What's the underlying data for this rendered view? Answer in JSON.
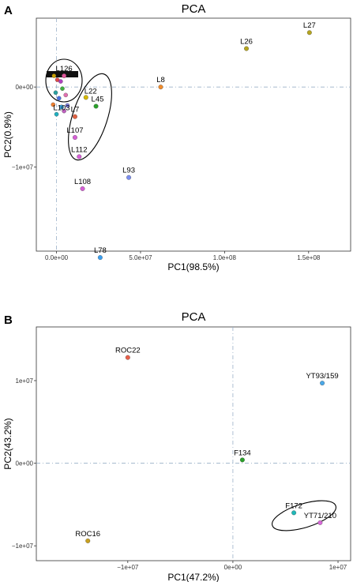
{
  "chart_data": [
    {
      "type": "scatter",
      "panel": "A",
      "title": "PCA",
      "xlabel": "PC1(98.5%)",
      "ylabel": "PC2(0.9%)",
      "xlim": [
        -12000000,
        175000000
      ],
      "ylim": [
        -20500000,
        8600000
      ],
      "xticks": [
        {
          "value": 0,
          "label": "0.0e+00"
        },
        {
          "value": 50000000,
          "label": "5.0e+07"
        },
        {
          "value": 100000000,
          "label": "1.0e+08"
        },
        {
          "value": 150000000,
          "label": "1.5e+08"
        }
      ],
      "yticks": [
        {
          "value": 0,
          "label": "0e+00"
        },
        {
          "value": -10000000,
          "label": "−1e+07"
        }
      ],
      "points": [
        {
          "label": "L27",
          "x": 150500000,
          "y": 6800000,
          "color": "#b5a51f"
        },
        {
          "label": "L26",
          "x": 113000000,
          "y": 4800000,
          "color": "#b5a51f"
        },
        {
          "label": "L8",
          "x": 62000000,
          "y": 0,
          "color": "#f08c2c"
        },
        {
          "label": "L22",
          "x": 17500000,
          "y": -1300000,
          "color": "#d4b800"
        },
        {
          "label": "L45",
          "x": 23500000,
          "y": -2400000,
          "color": "#2aa02a"
        },
        {
          "label": "L7",
          "x": 11000000,
          "y": -3700000,
          "color": "#e06040"
        },
        {
          "label": "L107",
          "x": 11000000,
          "y": -6300000,
          "color": "#d65fd6"
        },
        {
          "label": "L112",
          "x": 13500000,
          "y": -8700000,
          "color": "#d65fd6"
        },
        {
          "label": "L108",
          "x": 15500000,
          "y": -12700000,
          "color": "#d65fd6"
        },
        {
          "label": "L93",
          "x": 43000000,
          "y": -11300000,
          "color": "#7b8ef0"
        },
        {
          "label": "L78",
          "x": 26000000,
          "y": -21300000,
          "color": "#3a9ff0"
        },
        {
          "label": "L126",
          "x": 4500000,
          "y": 1400000,
          "color": "#e0559a"
        },
        {
          "label": "L103",
          "x": 3000000,
          "y": -2500000,
          "color": "#3aa0d8"
        }
      ],
      "cluster_points": [
        {
          "x": -1500000,
          "y": 1400000,
          "color": "#c8a000"
        },
        {
          "x": 500000,
          "y": 900000,
          "color": "#e04848"
        },
        {
          "x": 2500000,
          "y": 700000,
          "color": "#b040c0"
        },
        {
          "x": -500000,
          "y": -700000,
          "color": "#2aa0a0"
        },
        {
          "x": 1500000,
          "y": -1400000,
          "color": "#4a70e0"
        },
        {
          "x": 3500000,
          "y": -200000,
          "color": "#40b040"
        },
        {
          "x": 5500000,
          "y": -1000000,
          "color": "#e070b0"
        },
        {
          "x": 6500000,
          "y": -2300000,
          "color": "#8080e0"
        },
        {
          "x": 4500000,
          "y": -3000000,
          "color": "#c060c0"
        },
        {
          "x": -2000000,
          "y": -2200000,
          "color": "#f08030"
        },
        {
          "x": 0,
          "y": -3400000,
          "color": "#20b0c0"
        }
      ]
    },
    {
      "type": "scatter",
      "panel": "B",
      "title": "PCA",
      "xlabel": "PC1(47.2%)",
      "ylabel": "PC2(43.2%)",
      "xlim": [
        -18700000,
        11200000
      ],
      "ylim": [
        -11800000,
        16500000
      ],
      "xticks": [
        {
          "value": -10000000,
          "label": "−1e+07"
        },
        {
          "value": 0,
          "label": "0e+00"
        },
        {
          "value": 10000000,
          "label": "1e+07"
        }
      ],
      "yticks": [
        {
          "value": 10000000,
          "label": "1e+07"
        },
        {
          "value": 0,
          "label": "0e+00"
        },
        {
          "value": -10000000,
          "label": "−1e+07"
        }
      ],
      "points": [
        {
          "label": "ROC22",
          "x": -10000000,
          "y": 12800000,
          "color": "#e8604a"
        },
        {
          "label": "YT93/159",
          "x": 8500000,
          "y": 9700000,
          "color": "#4aa8e8"
        },
        {
          "label": "F134",
          "x": 900000,
          "y": 400000,
          "color": "#2aa02a"
        },
        {
          "label": "F172",
          "x": 5800000,
          "y": -6000000,
          "color": "#20b8b8"
        },
        {
          "label": "YT71/210",
          "x": 8300000,
          "y": -7200000,
          "color": "#d86ad8"
        },
        {
          "label": "ROC16",
          "x": -13800000,
          "y": -9400000,
          "color": "#c8a020"
        }
      ]
    }
  ],
  "panel_labels": [
    "A",
    "B"
  ]
}
